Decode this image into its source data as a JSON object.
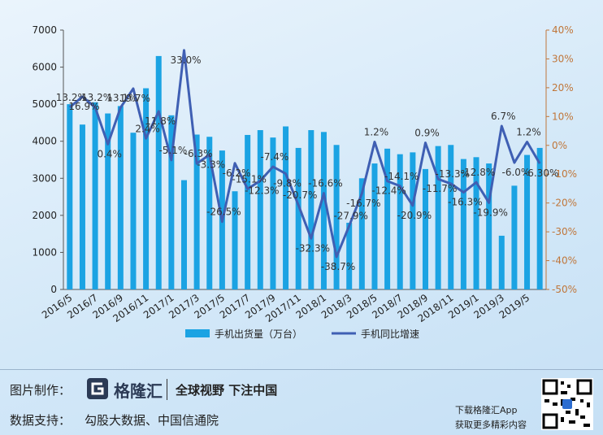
{
  "chart_data": {
    "type": "bar_line",
    "categories": [
      "2016/5",
      null,
      "2016/7",
      null,
      "2016/9",
      null,
      "2016/11",
      null,
      "2017/1",
      null,
      "2017/3",
      null,
      "2017/5",
      null,
      "2017/7",
      null,
      "2017/9",
      null,
      "2017/11",
      null,
      "2018/1",
      null,
      "2018/3",
      null,
      "2018/5",
      null,
      "2018/7",
      null,
      "2018/9",
      null,
      "2018/11",
      null,
      "2019/1",
      null,
      "2019/3",
      null,
      "2019/5",
      null
    ],
    "series": [
      {
        "name": "手机出货量（万台）",
        "type": "bar",
        "color": "#1ba3e3",
        "values": [
          5000,
          4450,
          5050,
          4750,
          4950,
          4230,
          5430,
          6300,
          4700,
          2950,
          4180,
          4120,
          3750,
          2650,
          4170,
          4300,
          4100,
          4400,
          3820,
          4300,
          4250,
          3900,
          1800,
          3000,
          3400,
          3800,
          3650,
          3700,
          3250,
          3870,
          3900,
          3520,
          3570,
          3400,
          1450,
          2800,
          3630,
          3820
        ]
      },
      {
        "name": "手机同比增速",
        "type": "line",
        "axis": "y2",
        "color": "#3f5fb3",
        "values": [
          13.2,
          16.9,
          13.2,
          0.4,
          13.1,
          19.7,
          2.4,
          11.8,
          -5.1,
          33.0,
          -6.3,
          -3.3,
          -26.5,
          -6.2,
          -15.1,
          -12.3,
          -7.4,
          -9.8,
          -20.7,
          -32.3,
          -16.6,
          -38.7,
          -27.9,
          -16.7,
          1.2,
          -12.4,
          -14.1,
          -20.9,
          0.9,
          -11.7,
          -13.3,
          -16.3,
          -12.8,
          -19.9,
          6.7,
          -6.0,
          1.2,
          -6.3
        ],
        "value_labels": [
          "13.2%",
          "16.9%",
          "13.2%",
          "0.4%",
          "13.1%",
          "19.7%",
          "2.4%",
          "11.8%",
          "-5.1%",
          "33.0%",
          "-6.3%",
          "-3.3%",
          "-26.5%",
          "-6.2%",
          "-15.1%",
          "-12.3%",
          "-7.4%",
          "-9.8%",
          "-20.7%",
          "-32.3%",
          "-16.6%",
          "-38.7%",
          "-27.9%",
          "-16.7%",
          "1.2%",
          "-12.4%",
          "-14.1%",
          "-20.9%",
          "0.9%",
          "-11.7%",
          "-13.3%",
          "-16.3%",
          "-12.8%",
          "-19.9%",
          "6.7%",
          "-6.0%",
          "1.2%",
          "-6.30%"
        ]
      }
    ],
    "ylim": [
      0,
      7000
    ],
    "yticks": [
      0,
      1000,
      2000,
      3000,
      4000,
      5000,
      6000,
      7000
    ],
    "y2lim": [
      -50,
      40
    ],
    "y2ticks": [
      {
        "value": -50,
        "label": "-50%"
      },
      {
        "value": -40,
        "label": "-40%"
      },
      {
        "value": -30,
        "label": "-30%"
      },
      {
        "value": -20,
        "label": "-20%"
      },
      {
        "value": -10,
        "label": "-10%"
      },
      {
        "value": 0,
        "label": "0%"
      },
      {
        "value": 10,
        "label": "10%"
      },
      {
        "value": 20,
        "label": "20%"
      },
      {
        "value": 30,
        "label": "30%"
      },
      {
        "value": 40,
        "label": "40%"
      }
    ],
    "y2_axis_color": "#c0763a",
    "legend": "bottom"
  },
  "footer": {
    "made_by_label": "图片制作：",
    "brand": "格隆汇",
    "slogan": "全球视野 下注中国",
    "data_label": "数据支持：",
    "data_source": "勾股大数据、中国信通院",
    "app_line1": "下载格隆汇App",
    "app_line2": "获取更多精彩内容"
  }
}
